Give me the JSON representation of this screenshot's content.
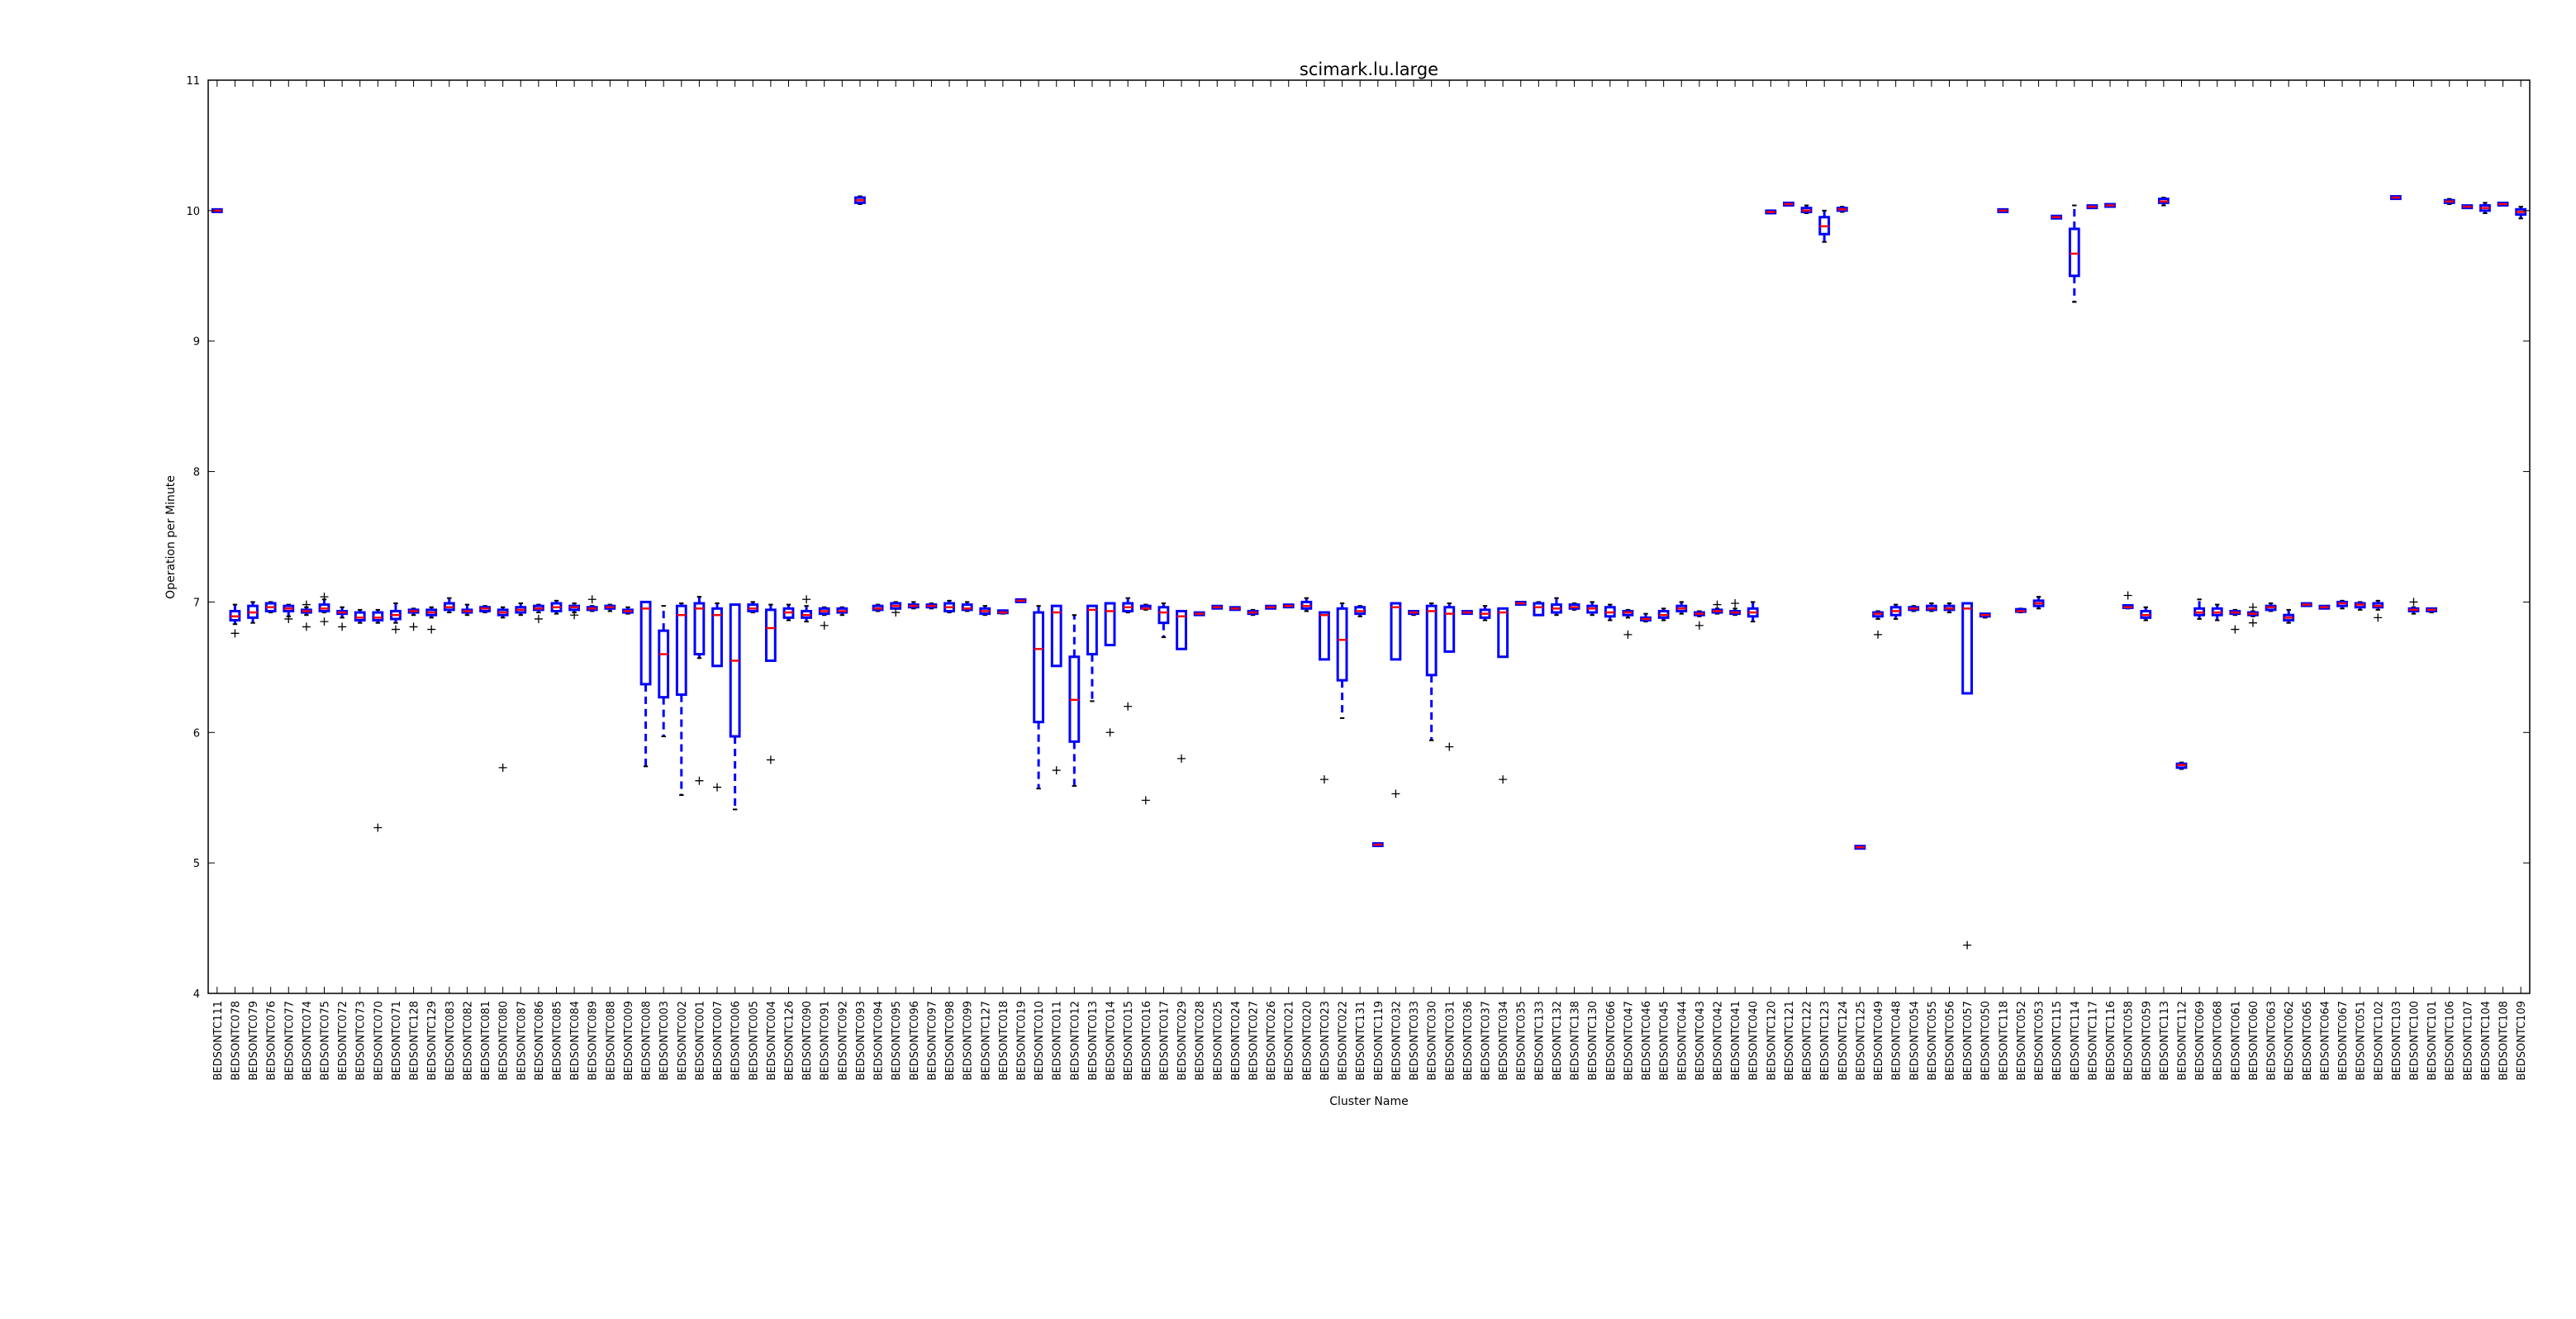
{
  "chart_data": {
    "type": "box",
    "title": "scimark.lu.large",
    "xlabel": "Cluster Name",
    "ylabel": "Operation per Minute",
    "ylim": [
      4,
      11
    ],
    "yticks": [
      4,
      5,
      6,
      7,
      8,
      9,
      10,
      11
    ],
    "grid": false,
    "legend": "none",
    "colors": {
      "box": "#0000ff",
      "median": "#ff0000",
      "flier": "#000000",
      "axis": "#000000"
    },
    "categories": [
      "BEDSONTC111",
      "BEDSONTC078",
      "BEDSONTC079",
      "BEDSONTC076",
      "BEDSONTC077",
      "BEDSONTC074",
      "BEDSONTC075",
      "BEDSONTC072",
      "BEDSONTC073",
      "BEDSONTC070",
      "BEDSONTC071",
      "BEDSONTC128",
      "BEDSONTC129",
      "BEDSONTC083",
      "BEDSONTC082",
      "BEDSONTC081",
      "BEDSONTC080",
      "BEDSONTC087",
      "BEDSONTC086",
      "BEDSONTC085",
      "BEDSONTC084",
      "BEDSONTC089",
      "BEDSONTC088",
      "BEDSONTC009",
      "BEDSONTC008",
      "BEDSONTC003",
      "BEDSONTC002",
      "BEDSONTC001",
      "BEDSONTC007",
      "BEDSONTC006",
      "BEDSONTC005",
      "BEDSONTC004",
      "BEDSONTC126",
      "BEDSONTC090",
      "BEDSONTC091",
      "BEDSONTC092",
      "BEDSONTC093",
      "BEDSONTC094",
      "BEDSONTC095",
      "BEDSONTC096",
      "BEDSONTC097",
      "BEDSONTC098",
      "BEDSONTC099",
      "BEDSONTC127",
      "BEDSONTC018",
      "BEDSONTC019",
      "BEDSONTC010",
      "BEDSONTC011",
      "BEDSONTC012",
      "BEDSONTC013",
      "BEDSONTC014",
      "BEDSONTC015",
      "BEDSONTC016",
      "BEDSONTC017",
      "BEDSONTC029",
      "BEDSONTC028",
      "BEDSONTC025",
      "BEDSONTC024",
      "BEDSONTC027",
      "BEDSONTC026",
      "BEDSONTC021",
      "BEDSONTC020",
      "BEDSONTC023",
      "BEDSONTC022",
      "BEDSONTC131",
      "BEDSONTC119",
      "BEDSONTC032",
      "BEDSONTC033",
      "BEDSONTC030",
      "BEDSONTC031",
      "BEDSONTC036",
      "BEDSONTC037",
      "BEDSONTC034",
      "BEDSONTC035",
      "BEDSONTC133",
      "BEDSONTC132",
      "BEDSONTC138",
      "BEDSONTC130",
      "BEDSONTC066",
      "BEDSONTC047",
      "BEDSONTC046",
      "BEDSONTC045",
      "BEDSONTC044",
      "BEDSONTC043",
      "BEDSONTC042",
      "BEDSONTC041",
      "BEDSONTC040",
      "BEDSONTC120",
      "BEDSONTC121",
      "BEDSONTC122",
      "BEDSONTC123",
      "BEDSONTC124",
      "BEDSONTC125",
      "BEDSONTC049",
      "BEDSONTC048",
      "BEDSONTC054",
      "BEDSONTC055",
      "BEDSONTC056",
      "BEDSONTC057",
      "BEDSONTC050",
      "BEDSONTC118",
      "BEDSONTC052",
      "BEDSONTC053",
      "BEDSONTC115",
      "BEDSONTC114",
      "BEDSONTC117",
      "BEDSONTC116",
      "BEDSONTC058",
      "BEDSONTC059",
      "BEDSONTC113",
      "BEDSONTC112",
      "BEDSONTC069",
      "BEDSONTC068",
      "BEDSONTC061",
      "BEDSONTC060",
      "BEDSONTC063",
      "BEDSONTC062",
      "BEDSONTC065",
      "BEDSONTC064",
      "BEDSONTC067",
      "BEDSONTC051",
      "BEDSONTC102",
      "BEDSONTC103",
      "BEDSONTC100",
      "BEDSONTC101",
      "BEDSONTC106",
      "BEDSONTC107",
      "BEDSONTC104",
      "BEDSONTC108",
      "BEDSONTC109"
    ],
    "boxes": [
      [
        10.0,
        10.0,
        10.0,
        10.0,
        10.0,
        []
      ],
      [
        6.83,
        6.86,
        6.89,
        6.93,
        6.98,
        [
          6.76
        ]
      ],
      [
        6.84,
        6.88,
        6.92,
        6.97,
        7.0,
        []
      ],
      [
        6.92,
        6.93,
        6.96,
        6.99,
        7.0,
        []
      ],
      [
        6.89,
        6.93,
        6.95,
        6.97,
        6.98,
        [
          6.87
        ]
      ],
      [
        6.9,
        6.92,
        6.93,
        6.94,
        6.96,
        [
          6.81,
          6.98
        ]
      ],
      [
        6.92,
        6.93,
        6.95,
        6.98,
        7.02,
        [
          6.85,
          7.04
        ]
      ],
      [
        6.88,
        6.91,
        6.92,
        6.93,
        6.96,
        [
          6.81
        ]
      ],
      [
        6.84,
        6.86,
        6.88,
        6.92,
        6.94,
        []
      ],
      [
        6.84,
        6.86,
        6.88,
        6.92,
        6.94,
        [
          5.27
        ]
      ],
      [
        6.84,
        6.87,
        6.9,
        6.93,
        6.99,
        [
          6.79
        ]
      ],
      [
        6.9,
        6.92,
        6.93,
        6.94,
        6.95,
        [
          6.81
        ]
      ],
      [
        6.88,
        6.9,
        6.92,
        6.94,
        6.96,
        [
          6.79
        ]
      ],
      [
        6.92,
        6.94,
        6.96,
        6.99,
        7.03,
        []
      ],
      [
        6.9,
        6.92,
        6.93,
        6.94,
        6.98,
        []
      ],
      [
        6.92,
        6.93,
        6.95,
        6.96,
        6.97,
        []
      ],
      [
        6.88,
        6.9,
        6.92,
        6.94,
        6.96,
        [
          5.73
        ]
      ],
      [
        6.9,
        6.92,
        6.94,
        6.96,
        6.99,
        []
      ],
      [
        6.92,
        6.94,
        6.95,
        6.97,
        6.98,
        [
          6.87
        ]
      ],
      [
        6.91,
        6.93,
        6.96,
        6.99,
        7.01,
        []
      ],
      [
        6.92,
        6.94,
        6.96,
        6.97,
        6.99,
        [
          6.9
        ]
      ],
      [
        6.93,
        6.94,
        6.95,
        6.96,
        6.97,
        [
          7.02
        ]
      ],
      [
        6.93,
        6.95,
        6.96,
        6.97,
        6.98,
        []
      ],
      [
        6.91,
        6.92,
        6.93,
        6.94,
        6.96,
        []
      ],
      [
        5.74,
        6.37,
        6.95,
        7.0,
        7.0,
        []
      ],
      [
        5.97,
        6.27,
        6.6,
        6.78,
        6.97,
        []
      ],
      [
        5.52,
        6.29,
        6.9,
        6.97,
        6.99,
        []
      ],
      [
        6.57,
        6.6,
        6.95,
        6.99,
        7.04,
        [
          5.63
        ]
      ],
      [
        6.51,
        6.51,
        6.9,
        6.95,
        6.99,
        [
          5.58
        ]
      ],
      [
        5.41,
        5.97,
        6.55,
        6.98,
        6.98,
        []
      ],
      [
        6.92,
        6.93,
        6.95,
        6.98,
        7.0,
        []
      ],
      [
        6.55,
        6.55,
        6.8,
        6.94,
        6.98,
        [
          5.79
        ]
      ],
      [
        6.86,
        6.88,
        6.92,
        6.95,
        6.98,
        []
      ],
      [
        6.85,
        6.88,
        6.9,
        6.93,
        6.97,
        [
          7.02
        ]
      ],
      [
        6.9,
        6.91,
        6.93,
        6.95,
        6.96,
        [
          6.82
        ]
      ],
      [
        6.9,
        6.92,
        6.93,
        6.95,
        6.96,
        []
      ],
      [
        10.05,
        10.06,
        10.08,
        10.1,
        10.11,
        []
      ],
      [
        6.93,
        6.94,
        6.95,
        6.97,
        6.98,
        []
      ],
      [
        6.95,
        6.95,
        6.97,
        6.99,
        7.0,
        [
          6.92
        ]
      ],
      [
        6.95,
        6.96,
        6.97,
        6.98,
        7.0,
        []
      ],
      [
        6.95,
        6.96,
        6.97,
        6.98,
        6.99,
        []
      ],
      [
        6.92,
        6.93,
        6.96,
        6.99,
        7.01,
        []
      ],
      [
        6.93,
        6.94,
        6.95,
        6.98,
        7.0,
        []
      ],
      [
        6.9,
        6.91,
        6.93,
        6.95,
        6.97,
        []
      ],
      [
        6.91,
        6.92,
        6.92,
        6.93,
        6.93,
        []
      ],
      [
        7.01,
        7.01,
        7.01,
        7.01,
        7.01,
        []
      ],
      [
        5.57,
        6.08,
        6.64,
        6.92,
        6.97,
        []
      ],
      [
        6.51,
        6.51,
        6.92,
        6.97,
        6.97,
        [
          5.71
        ]
      ],
      [
        5.59,
        5.93,
        6.25,
        6.58,
        6.9,
        []
      ],
      [
        6.24,
        6.6,
        6.94,
        6.97,
        6.97,
        []
      ],
      [
        6.67,
        6.67,
        6.93,
        6.99,
        6.99,
        [
          6.0
        ]
      ],
      [
        6.92,
        6.93,
        6.96,
        6.99,
        7.03,
        [
          6.2
        ]
      ],
      [
        6.94,
        6.95,
        6.95,
        6.97,
        6.98,
        [
          5.48
        ]
      ],
      [
        6.73,
        6.84,
        6.92,
        6.96,
        6.99,
        []
      ],
      [
        6.64,
        6.64,
        6.89,
        6.93,
        6.93,
        [
          5.8
        ]
      ],
      [
        6.91,
        6.91,
        6.91,
        6.91,
        6.91,
        []
      ],
      [
        6.96,
        6.96,
        6.96,
        6.96,
        6.96,
        []
      ],
      [
        6.95,
        6.95,
        6.95,
        6.95,
        6.95,
        []
      ],
      [
        6.9,
        6.91,
        6.92,
        6.93,
        6.94,
        []
      ],
      [
        6.96,
        6.96,
        6.96,
        6.96,
        6.96,
        []
      ],
      [
        6.96,
        6.97,
        6.97,
        6.97,
        6.97,
        []
      ],
      [
        6.93,
        6.95,
        6.97,
        7.0,
        7.03,
        []
      ],
      [
        6.56,
        6.56,
        6.9,
        6.92,
        6.92,
        [
          5.64
        ]
      ],
      [
        6.11,
        6.4,
        6.71,
        6.95,
        6.99,
        []
      ],
      [
        6.89,
        6.91,
        6.93,
        6.96,
        6.97,
        []
      ],
      [
        5.14,
        5.14,
        5.14,
        5.14,
        5.14,
        []
      ],
      [
        6.56,
        6.56,
        6.96,
        6.99,
        6.99,
        [
          5.53
        ]
      ],
      [
        6.9,
        6.91,
        6.92,
        6.93,
        6.93,
        []
      ],
      [
        5.94,
        6.44,
        6.93,
        6.97,
        6.99,
        []
      ],
      [
        6.62,
        6.62,
        6.91,
        6.96,
        6.99,
        [
          5.89
        ]
      ],
      [
        6.92,
        6.92,
        6.92,
        6.92,
        6.92,
        []
      ],
      [
        6.86,
        6.88,
        6.91,
        6.94,
        6.97,
        []
      ],
      [
        6.58,
        6.58,
        6.92,
        6.95,
        6.95,
        [
          5.64
        ]
      ],
      [
        6.99,
        6.99,
        6.99,
        6.99,
        6.99,
        []
      ],
      [
        6.9,
        6.9,
        6.96,
        6.99,
        7.0,
        []
      ],
      [
        6.9,
        6.92,
        6.95,
        6.98,
        7.03,
        []
      ],
      [
        6.94,
        6.95,
        6.96,
        6.98,
        6.99,
        []
      ],
      [
        6.9,
        6.92,
        6.95,
        6.97,
        7.0,
        []
      ],
      [
        6.86,
        6.89,
        6.92,
        6.96,
        6.98,
        []
      ],
      [
        6.88,
        6.9,
        6.92,
        6.93,
        6.94,
        [
          6.75
        ]
      ],
      [
        6.85,
        6.86,
        6.87,
        6.88,
        6.91,
        []
      ],
      [
        6.86,
        6.88,
        6.9,
        6.93,
        6.95,
        []
      ],
      [
        6.91,
        6.93,
        6.95,
        6.97,
        7.0,
        []
      ],
      [
        6.89,
        6.9,
        6.91,
        6.92,
        6.93,
        [
          6.82
        ]
      ],
      [
        6.91,
        6.92,
        6.93,
        6.94,
        6.95,
        [
          6.98
        ]
      ],
      [
        6.9,
        6.91,
        6.92,
        6.93,
        6.95,
        [
          6.99
        ]
      ],
      [
        6.85,
        6.89,
        6.92,
        6.95,
        7.0,
        []
      ],
      [
        9.99,
        9.99,
        9.99,
        9.99,
        9.99,
        []
      ],
      [
        10.05,
        10.05,
        10.05,
        10.05,
        10.05,
        []
      ],
      [
        9.98,
        9.99,
        10.0,
        10.02,
        10.04,
        []
      ],
      [
        9.76,
        9.82,
        9.88,
        9.95,
        10.0,
        []
      ],
      [
        9.99,
        10.0,
        10.01,
        10.02,
        10.03,
        []
      ],
      [
        5.12,
        5.12,
        5.12,
        5.12,
        5.12,
        []
      ],
      [
        6.87,
        6.89,
        6.91,
        6.92,
        6.93,
        [
          6.75
        ]
      ],
      [
        6.87,
        6.9,
        6.93,
        6.96,
        6.98,
        []
      ],
      [
        6.93,
        6.94,
        6.95,
        6.96,
        6.97,
        []
      ],
      [
        6.93,
        6.94,
        6.95,
        6.97,
        6.99,
        []
      ],
      [
        6.92,
        6.94,
        6.95,
        6.97,
        6.99,
        []
      ],
      [
        6.3,
        6.3,
        6.95,
        6.99,
        6.99,
        [
          4.37
        ]
      ],
      [
        6.88,
        6.89,
        6.9,
        6.91,
        6.91,
        []
      ],
      [
        10.0,
        10.0,
        10.0,
        10.0,
        10.0,
        []
      ],
      [
        6.92,
        6.93,
        6.93,
        6.94,
        6.95,
        []
      ],
      [
        6.95,
        6.97,
        6.99,
        7.01,
        7.04,
        []
      ],
      [
        9.95,
        9.95,
        9.95,
        9.95,
        9.95,
        []
      ],
      [
        9.3,
        9.5,
        9.67,
        9.86,
        10.04,
        []
      ],
      [
        10.03,
        10.03,
        10.03,
        10.03,
        10.03,
        []
      ],
      [
        10.04,
        10.04,
        10.04,
        10.04,
        10.04,
        []
      ],
      [
        6.95,
        6.96,
        6.96,
        6.97,
        6.97,
        [
          7.05
        ]
      ],
      [
        6.86,
        6.88,
        6.9,
        6.93,
        6.96,
        []
      ],
      [
        10.04,
        10.06,
        10.07,
        10.09,
        10.1,
        []
      ],
      [
        5.72,
        5.73,
        5.75,
        5.76,
        5.77,
        []
      ],
      [
        6.87,
        6.9,
        6.92,
        6.95,
        7.02,
        []
      ],
      [
        6.86,
        6.9,
        6.92,
        6.95,
        6.98,
        []
      ],
      [
        6.9,
        6.91,
        6.92,
        6.93,
        6.94,
        [
          6.79
        ]
      ],
      [
        6.89,
        6.9,
        6.91,
        6.92,
        6.93,
        [
          6.84,
          6.96
        ]
      ],
      [
        6.93,
        6.94,
        6.96,
        6.97,
        6.99,
        []
      ],
      [
        6.84,
        6.86,
        6.88,
        6.9,
        6.94,
        []
      ],
      [
        6.98,
        6.98,
        6.98,
        6.98,
        6.98,
        []
      ],
      [
        6.96,
        6.96,
        6.96,
        6.96,
        6.96,
        []
      ],
      [
        6.95,
        6.97,
        6.99,
        7.0,
        7.01,
        []
      ],
      [
        6.94,
        6.96,
        6.98,
        6.99,
        7.0,
        []
      ],
      [
        6.94,
        6.96,
        6.97,
        6.99,
        7.01,
        [
          6.88
        ]
      ],
      [
        10.1,
        10.1,
        10.1,
        10.1,
        10.1,
        []
      ],
      [
        6.91,
        6.93,
        6.94,
        6.95,
        6.96,
        [
          7.0
        ]
      ],
      [
        6.92,
        6.93,
        6.94,
        6.95,
        6.95,
        []
      ],
      [
        10.05,
        10.06,
        10.07,
        10.08,
        10.09,
        []
      ],
      [
        10.03,
        10.03,
        10.03,
        10.03,
        10.03,
        []
      ],
      [
        9.98,
        10.0,
        10.02,
        10.04,
        10.06,
        []
      ],
      [
        10.05,
        10.05,
        10.05,
        10.05,
        10.05,
        []
      ],
      [
        9.94,
        9.97,
        9.99,
        10.01,
        10.03,
        []
      ]
    ]
  }
}
